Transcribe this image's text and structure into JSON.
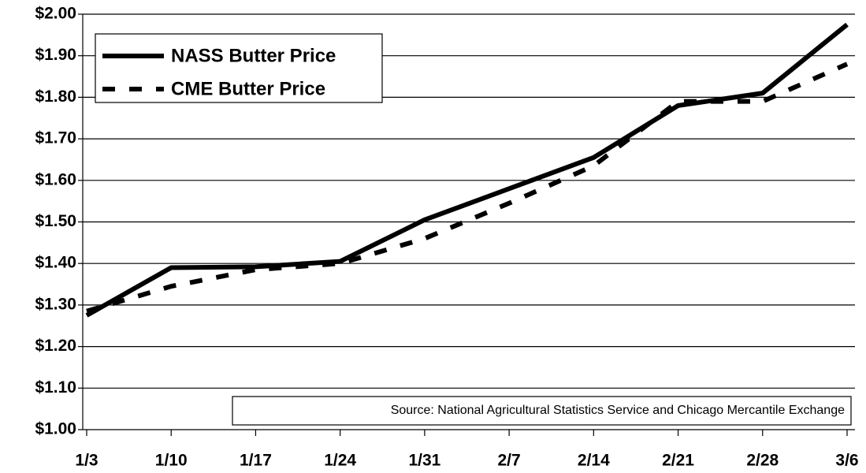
{
  "chart_data": {
    "type": "line",
    "categories": [
      "1/3",
      "1/10",
      "1/17",
      "1/24",
      "1/31",
      "2/7",
      "2/14",
      "2/21",
      "2/28",
      "3/6"
    ],
    "series": [
      {
        "name": "NASS Butter Price",
        "color": "#000000",
        "dash": "solid",
        "values": [
          1.275,
          1.39,
          1.392,
          1.405,
          1.505,
          1.58,
          1.655,
          1.78,
          1.81,
          1.975
        ]
      },
      {
        "name": "CME Butter Price",
        "color": "#000000",
        "dash": "dashed",
        "values": [
          1.285,
          1.345,
          1.385,
          1.4,
          1.46,
          1.545,
          1.635,
          1.79,
          1.79,
          1.88
        ]
      }
    ],
    "ylim": [
      1.0,
      2.0
    ],
    "yticks": [
      {
        "value": 1.0,
        "label": "$1.00"
      },
      {
        "value": 1.1,
        "label": "$1.10"
      },
      {
        "value": 1.2,
        "label": "$1.20"
      },
      {
        "value": 1.3,
        "label": "$1.30"
      },
      {
        "value": 1.4,
        "label": "$1.40"
      },
      {
        "value": 1.5,
        "label": "$1.50"
      },
      {
        "value": 1.6,
        "label": "$1.60"
      },
      {
        "value": 1.7,
        "label": "$1.70"
      },
      {
        "value": 1.8,
        "label": "$1.80"
      },
      {
        "value": 1.9,
        "label": "$1.90"
      },
      {
        "value": 2.0,
        "label": "$2.00"
      }
    ],
    "grid": true,
    "legend": "upper left",
    "annotation": "Source: National Agricultural Statistics Service and Chicago Mercantile Exchange"
  }
}
